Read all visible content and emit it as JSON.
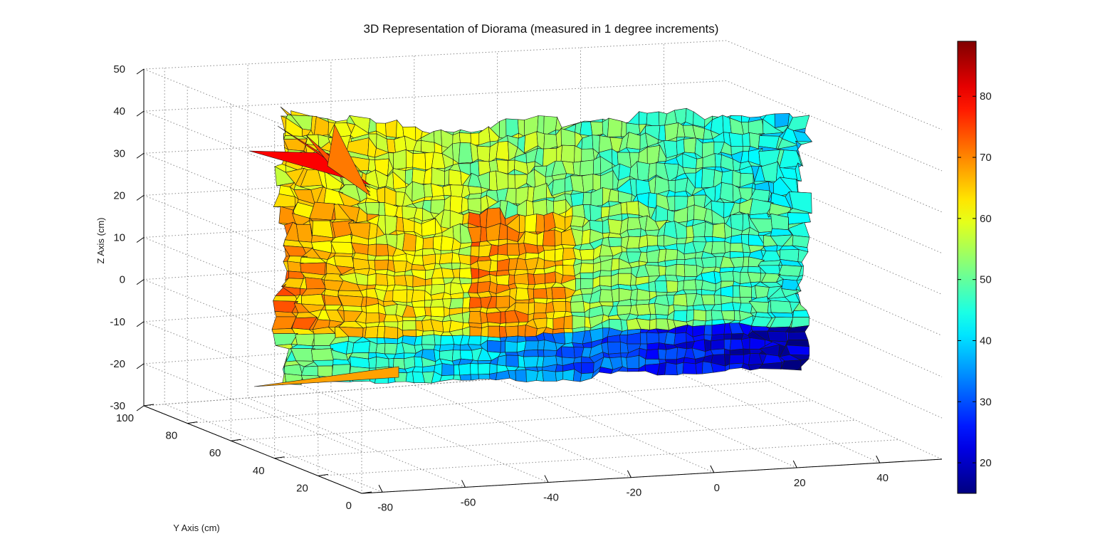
{
  "chart_data": {
    "type": "surface",
    "title": "3D Representation of Diorama (measured in 1 degree increments)",
    "xlabel": "",
    "ylabel": "Y Axis (cm)",
    "zlabel": "Z Axis (cm)",
    "x_ticks": [
      -80,
      -60,
      -40,
      -20,
      0,
      20,
      40
    ],
    "y_ticks": [
      0,
      20,
      40,
      60,
      80,
      100
    ],
    "z_ticks": [
      50,
      40,
      30,
      20,
      10,
      0,
      -10,
      -20,
      -30
    ],
    "xlim": [
      -85,
      55
    ],
    "ylim": [
      0,
      100
    ],
    "zlim": [
      -30,
      50
    ],
    "grid": true,
    "colormap": "jet",
    "colorbar": {
      "ticks": [
        80,
        70,
        60,
        50,
        40,
        30,
        20
      ],
      "range": [
        15,
        89
      ],
      "colors": [
        "#00008f",
        "#0000ff",
        "#00ffff",
        "#80ff80",
        "#ffff00",
        "#ff0000",
        "#800000"
      ]
    },
    "surface_grid": {
      "cols": 56,
      "rows": 34,
      "value_range_at_top": [
        65,
        45
      ],
      "value_range_middle": [
        72,
        48
      ],
      "value_range_bottom": [
        55,
        20
      ]
    }
  }
}
